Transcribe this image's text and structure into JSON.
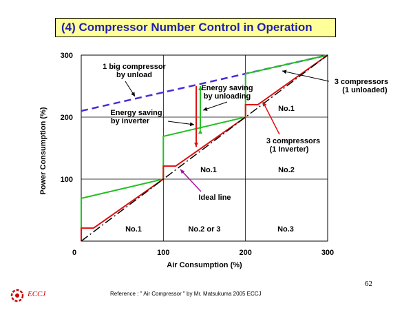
{
  "slide": {
    "title": "(4) Compressor Number Control in Operation",
    "reference": "Reference : \" Air Compressor \" by Mr. Matsukuma  2005 ECCJ",
    "page_number": "62",
    "logo_text": "ECCJ"
  },
  "chart_data": {
    "type": "line",
    "xlabel": "Air Consumption (%)",
    "ylabel": "Power Consumption (%)",
    "xlim": [
      0,
      300
    ],
    "ylim": [
      0,
      300
    ],
    "x_ticks": [
      "0",
      "100",
      "200",
      "300"
    ],
    "y_ticks": [
      "100",
      "200",
      "300"
    ],
    "grid": true,
    "series": [
      {
        "key": "big_compressor",
        "name": "1 big compressor by unload",
        "style": "dashed",
        "color": "#4a2bd8",
        "points": [
          [
            0,
            210
          ],
          [
            300,
            300
          ]
        ]
      },
      {
        "key": "three_unloaded",
        "name": "3 compressors (1 unloaded)",
        "style": "solid",
        "color": "#22c022",
        "points": [
          [
            0,
            0
          ],
          [
            0,
            69
          ],
          [
            100,
            100
          ],
          [
            100,
            169
          ],
          [
            200,
            200
          ],
          [
            200,
            270
          ],
          [
            300,
            300
          ]
        ]
      },
      {
        "key": "three_inverter",
        "name": "3 compressors (1 Inverter)",
        "style": "solid",
        "color": "#e01010",
        "points": [
          [
            0,
            0
          ],
          [
            0,
            21
          ],
          [
            15,
            21
          ],
          [
            100,
            100
          ],
          [
            100,
            121
          ],
          [
            115,
            121
          ],
          [
            200,
            200
          ],
          [
            200,
            220
          ],
          [
            215,
            220
          ],
          [
            300,
            300
          ]
        ]
      },
      {
        "key": "ideal",
        "name": "Ideal line",
        "style": "dashdot",
        "color": "#000000",
        "points": [
          [
            0,
            0
          ],
          [
            300,
            300
          ]
        ]
      }
    ],
    "annotations": {
      "big_compressor": [
        "1 big compressor",
        "by unload"
      ],
      "unloading": [
        "Energy saving",
        "by unloading"
      ],
      "inverter": [
        "Energy saving",
        "by inverter"
      ],
      "three_unloaded": [
        "3 compressors",
        "(1 unloaded)"
      ],
      "three_inverter": [
        "3 compressors",
        "(1 Inverter)"
      ],
      "ideal": [
        "Ideal line"
      ]
    },
    "region_labels": {
      "bottom": [
        "No.1",
        "No.2 or 3",
        "No.3"
      ],
      "middle": [
        "No.1",
        "No.2"
      ],
      "top": [
        "No.1"
      ]
    },
    "colors": {
      "arrow_green": "#22c022",
      "arrow_red": "#e01010",
      "pointer_purple": "#a0159a"
    }
  }
}
